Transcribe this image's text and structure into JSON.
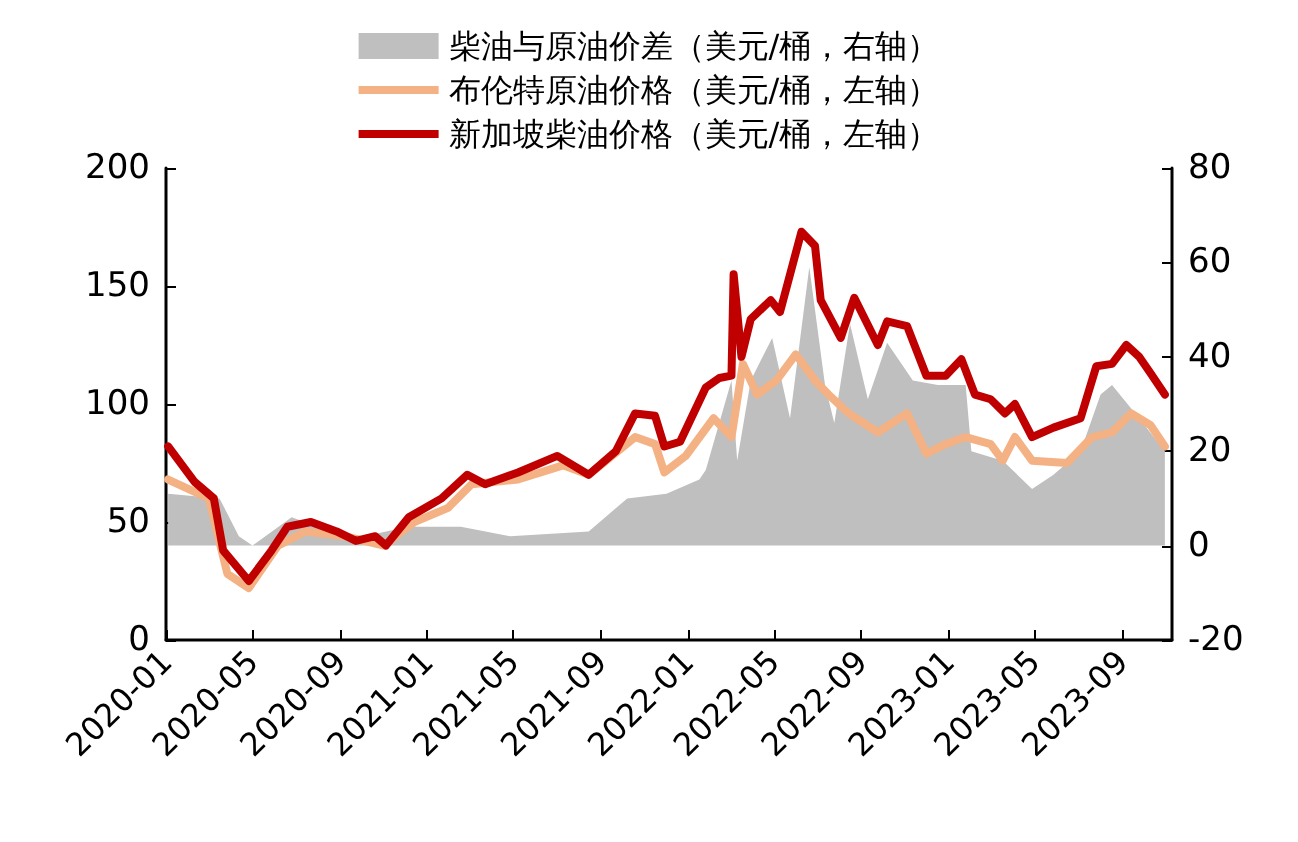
{
  "chart_data": {
    "type": "line",
    "xlim": [
      "2020-01-01",
      "2023-11-10"
    ],
    "xticks": [
      "2020-01",
      "2020-05",
      "2020-09",
      "2021-01",
      "2021-05",
      "2021-09",
      "2022-01",
      "2022-05",
      "2022-09",
      "2023-01",
      "2023-05",
      "2023-09"
    ],
    "ylim": [
      0,
      200
    ],
    "yticks": [
      0,
      50,
      100,
      150,
      200
    ],
    "y2lim": [
      -20,
      80
    ],
    "y2ticks": [
      -20,
      0,
      20,
      40,
      60,
      80
    ],
    "grid": false,
    "legend": "top",
    "marker": "none",
    "line_style": "solid",
    "series": [
      {
        "name": "柴油与原油价差（美元/桶，右轴）",
        "type": "area",
        "axis": "y2",
        "color": "#bfbfbf",
        "x": [
          "2020-01-04",
          "2020-03-16",
          "2020-04-12",
          "2020-05-01",
          "2020-06-25",
          "2020-08-18",
          "2020-10-04",
          "2020-12-06",
          "2021-02-17",
          "2021-04-27",
          "2021-08-15",
          "2021-10-08",
          "2021-12-02",
          "2022-01-17",
          "2022-01-26",
          "2022-03-03",
          "2022-03-11",
          "2022-03-30",
          "2022-04-29",
          "2022-05-24",
          "2022-06-20",
          "2022-07-12",
          "2022-07-25",
          "2022-08-16",
          "2022-09-10",
          "2022-10-07",
          "2022-11-12",
          "2022-12-17",
          "2023-01-25",
          "2023-02-02",
          "2023-03-18",
          "2023-04-28",
          "2023-05-28",
          "2023-07-05",
          "2023-08-02",
          "2023-08-18",
          "2023-09-25",
          "2023-10-31"
        ],
        "values": [
          11,
          10,
          2,
          0,
          6,
          3,
          2,
          4,
          4,
          2,
          3,
          10,
          11,
          14,
          16,
          35,
          18,
          35,
          44,
          27,
          59,
          34,
          26,
          47,
          31,
          43,
          35,
          34,
          34,
          20,
          18,
          12,
          15,
          20,
          32,
          34,
          27,
          20
        ]
      },
      {
        "name": "布伦特原油价格（美元/桶，左轴）",
        "axis": "y",
        "color": "#f4b183",
        "x": [
          "2020-01-04",
          "2020-03-01",
          "2020-03-27",
          "2020-04-26",
          "2020-06-06",
          "2020-07-14",
          "2020-09-07",
          "2020-11-01",
          "2020-12-14",
          "2021-01-30",
          "2021-03-04",
          "2021-05-08",
          "2021-07-10",
          "2021-08-15",
          "2021-10-19",
          "2021-11-16",
          "2021-11-29",
          "2021-12-29",
          "2022-02-06",
          "2022-03-03",
          "2022-03-19",
          "2022-04-08",
          "2022-05-05",
          "2022-06-01",
          "2022-06-28",
          "2022-07-17",
          "2022-08-14",
          "2022-09-24",
          "2022-11-04",
          "2022-12-01",
          "2022-12-28",
          "2023-01-25",
          "2023-03-01",
          "2023-03-18",
          "2023-04-04",
          "2023-04-28",
          "2023-06-16",
          "2023-07-21",
          "2023-08-18",
          "2023-09-14",
          "2023-10-11",
          "2023-10-31"
        ],
        "values": [
          68,
          60,
          28,
          22,
          40,
          46,
          44,
          40,
          50,
          56,
          66,
          68,
          74,
          70,
          86,
          83,
          71,
          78,
          94,
          86,
          117,
          104,
          110,
          121,
          110,
          104,
          96,
          88,
          96,
          79,
          83,
          86,
          83,
          76,
          86,
          76,
          75,
          86,
          88,
          96,
          91,
          82
        ]
      },
      {
        "name": "新加坡柴油价格（美元/桶，左轴）",
        "axis": "y",
        "color": "#c00000",
        "x": [
          "2020-01-04",
          "2020-02-10",
          "2020-03-08",
          "2020-03-21",
          "2020-04-26",
          "2020-05-28",
          "2020-06-19",
          "2020-07-22",
          "2020-08-27",
          "2020-09-23",
          "2020-10-20",
          "2020-11-04",
          "2020-12-06",
          "2021-01-21",
          "2021-02-26",
          "2021-03-23",
          "2021-05-08",
          "2021-07-02",
          "2021-08-15",
          "2021-09-22",
          "2021-10-19",
          "2021-11-16",
          "2021-11-29",
          "2021-12-21",
          "2022-01-26",
          "2022-02-14",
          "2022-03-03",
          "2022-03-06",
          "2022-03-17",
          "2022-03-30",
          "2022-04-27",
          "2022-05-10",
          "2022-06-09",
          "2022-06-28",
          "2022-07-06",
          "2022-08-03",
          "2022-08-22",
          "2022-09-24",
          "2022-10-07",
          "2022-11-04",
          "2022-12-01",
          "2022-12-28",
          "2023-01-19",
          "2023-02-07",
          "2023-03-01",
          "2023-03-21",
          "2023-04-04",
          "2023-04-28",
          "2023-05-28",
          "2023-07-05",
          "2023-07-27",
          "2023-08-18",
          "2023-09-07",
          "2023-09-25",
          "2023-10-11",
          "2023-10-31"
        ],
        "values": [
          82,
          67,
          60,
          38,
          25,
          38,
          48,
          50,
          46,
          42,
          44,
          40,
          52,
          60,
          70,
          66,
          71,
          78,
          70,
          80,
          96,
          95,
          82,
          84,
          107,
          111,
          112,
          155,
          120,
          136,
          144,
          139,
          173,
          167,
          144,
          128,
          145,
          125,
          135,
          133,
          112,
          112,
          119,
          104,
          102,
          96,
          100,
          86,
          90,
          94,
          116,
          117,
          125,
          120,
          113,
          104
        ]
      }
    ]
  }
}
